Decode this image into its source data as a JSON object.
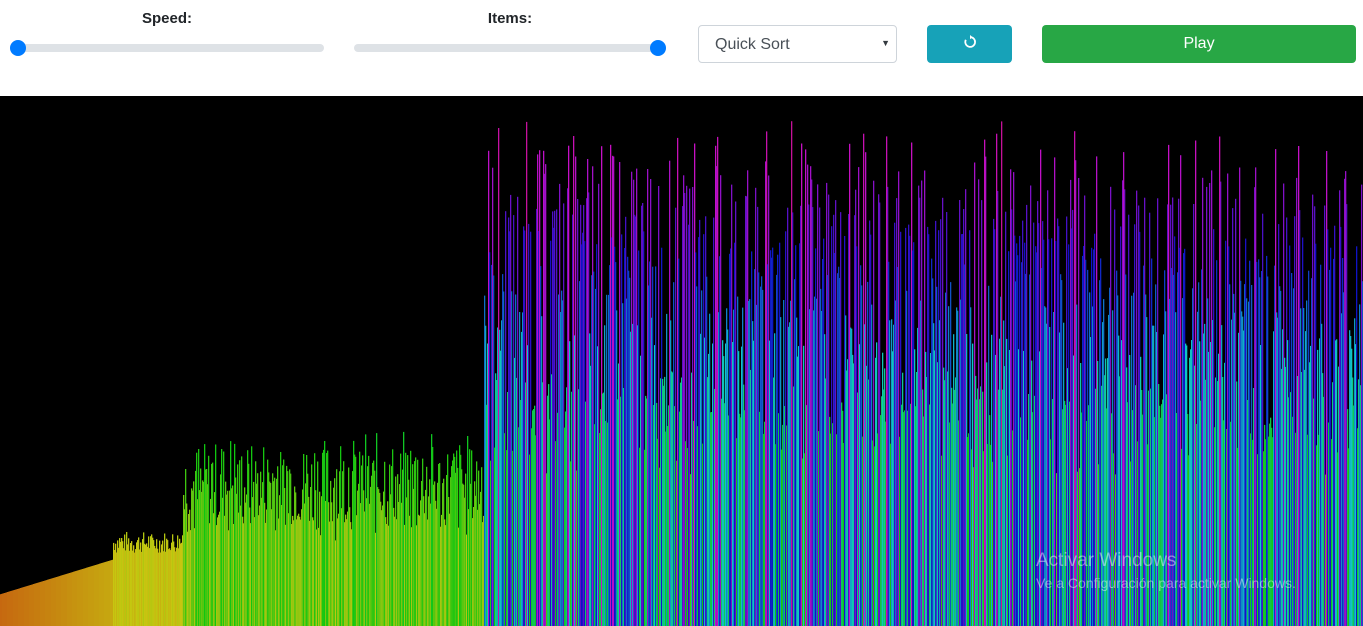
{
  "controls": {
    "speed_label": "Speed:",
    "speed_value": 0,
    "items_label": "Items:",
    "items_value": 1,
    "algorithm": "Quick Sort",
    "reset_icon": "rotate-ccw-icon",
    "play_label": "Play"
  },
  "colors": {
    "slider_thumb": "#007bff",
    "slider_track": "#dee2e6",
    "reset_button": "#17a2b8",
    "play_button": "#28a745",
    "canvas_background": "#000000"
  },
  "visualization": {
    "bar_count": 1363,
    "segments": [
      {
        "from": 0,
        "to": 113,
        "value_start": 0.06,
        "value_end": 0.125,
        "noise": 0.0
      },
      {
        "from": 113,
        "to": 182,
        "value_start": 0.14,
        "value_end": 0.18,
        "noise": 0.02
      },
      {
        "from": 182,
        "to": 484,
        "value_start": 0.2,
        "value_end": 0.37,
        "noise": 0.16
      },
      {
        "from": 484,
        "to": 1363,
        "value_start": 0.4,
        "value_end": 0.96,
        "noise": 0.55
      }
    ]
  },
  "watermark": {
    "title": "Activar Windows",
    "subtitle": "Ve a Configuración para activar Windows."
  }
}
